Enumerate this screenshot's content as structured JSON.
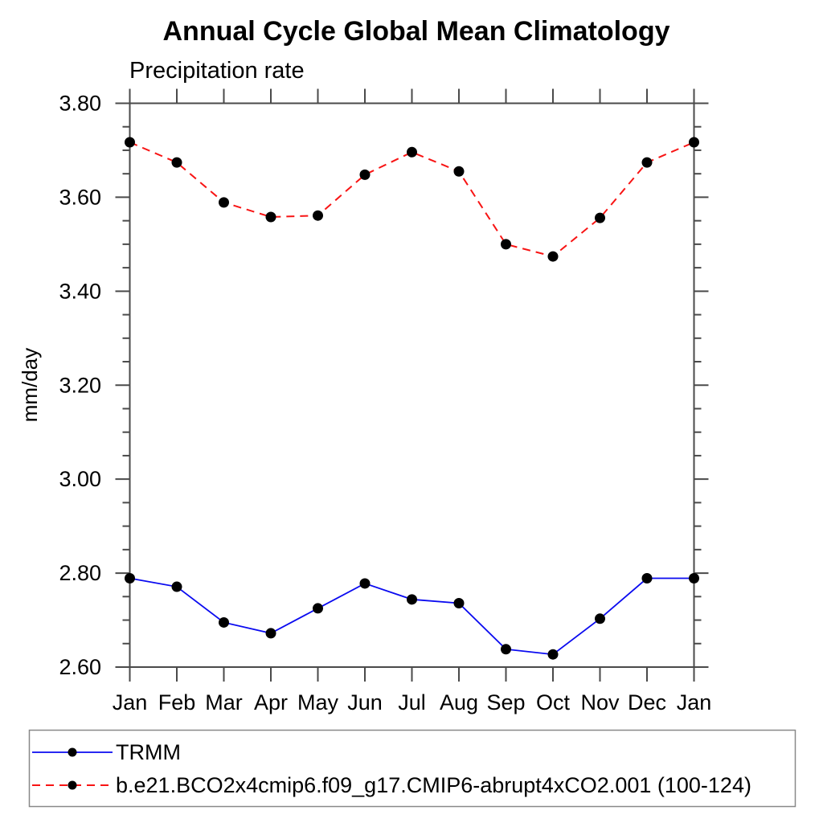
{
  "chart_data": {
    "type": "line",
    "title": "Annual Cycle Global Mean Climatology",
    "subtitle": "Precipitation rate",
    "xlabel": "",
    "ylabel": "mm/day",
    "ylim": [
      2.6,
      3.8
    ],
    "ytick_major_interval": 0.2,
    "ytick_minor_interval": 0.05,
    "ytick_labels": [
      "2.60",
      "2.80",
      "3.00",
      "3.20",
      "3.40",
      "3.60",
      "3.80"
    ],
    "grid": false,
    "legend_position": "bottom-left-box",
    "categories": [
      "Jan",
      "Feb",
      "Mar",
      "Apr",
      "May",
      "Jun",
      "Jul",
      "Aug",
      "Sep",
      "Oct",
      "Nov",
      "Dec",
      "Jan"
    ],
    "series": [
      {
        "name": "TRMM",
        "line_style": "solid",
        "color": "#0a0af0",
        "dash": "",
        "line_width": 1.8,
        "marker": "circle",
        "marker_color": "#000000",
        "values": [
          2.789,
          2.771,
          2.695,
          2.672,
          2.725,
          2.778,
          2.744,
          2.736,
          2.638,
          2.627,
          2.703,
          2.789,
          2.789
        ]
      },
      {
        "name": "b.e21.BCO2x4cmip6.f09_g17.CMIP6-abrupt4xCO2.001 (100-124)",
        "line_style": "dashed",
        "color": "#f81414",
        "dash": "10 7",
        "line_width": 2,
        "marker": "circle",
        "marker_color": "#000000",
        "values": [
          3.717,
          3.674,
          3.589,
          3.558,
          3.561,
          3.648,
          3.696,
          3.655,
          3.5,
          3.474,
          3.556,
          3.674,
          3.717
        ]
      }
    ]
  }
}
